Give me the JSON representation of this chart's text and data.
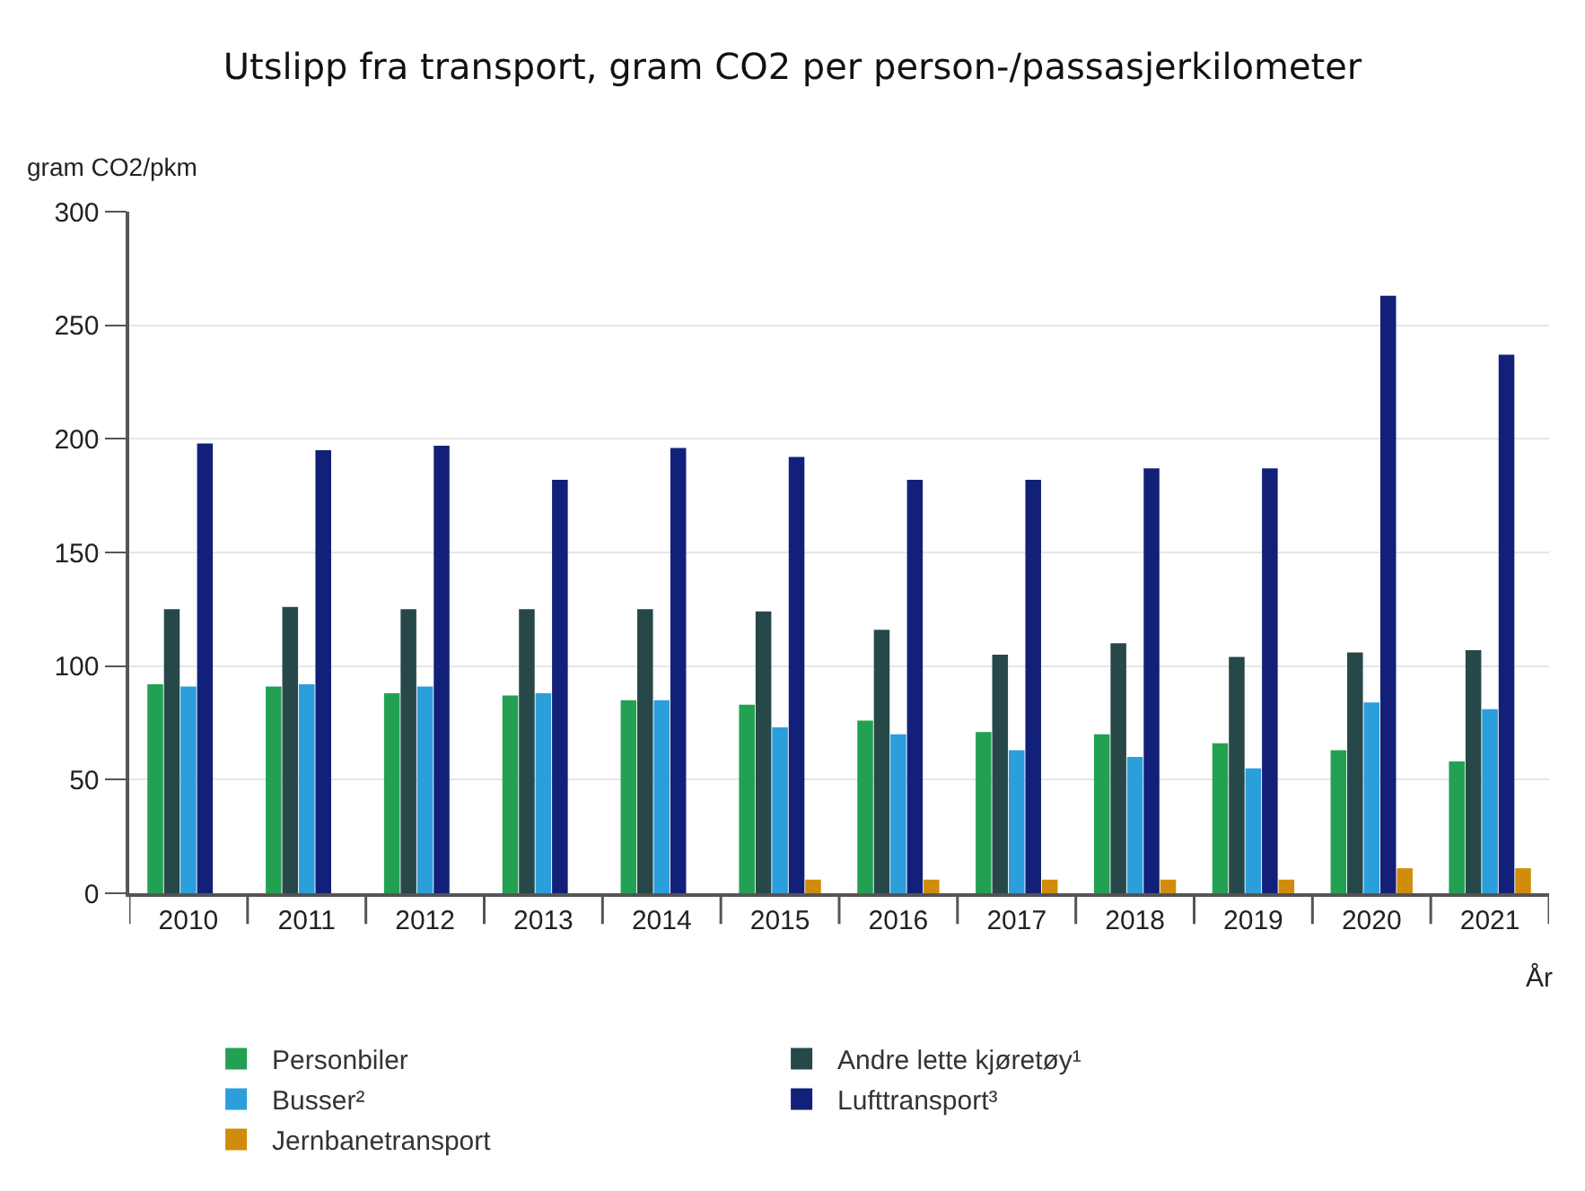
{
  "chart_data": {
    "type": "bar",
    "title": "Utslipp fra transport, gram CO2 per person-/passasjerkilometer",
    "xlabel": "År",
    "ylabel": "gram CO2/pkm",
    "categories": [
      "2010",
      "2011",
      "2012",
      "2013",
      "2014",
      "2015",
      "2016",
      "2017",
      "2018",
      "2019",
      "2020",
      "2021"
    ],
    "series": [
      {
        "name": "Personbiler",
        "color": "#22a153",
        "values": [
          92,
          91,
          88,
          87,
          85,
          83,
          76,
          71,
          70,
          66,
          63,
          58
        ]
      },
      {
        "name": "Andre lette kjøretøy¹",
        "color": "#274848",
        "values": [
          125,
          126,
          125,
          125,
          125,
          124,
          116,
          105,
          110,
          104,
          106,
          107
        ]
      },
      {
        "name": "Busser²",
        "color": "#2a9fdc",
        "values": [
          91,
          92,
          91,
          88,
          85,
          73,
          70,
          63,
          60,
          55,
          84,
          81
        ]
      },
      {
        "name": "Lufttransport³",
        "color": "#13207a",
        "values": [
          198,
          195,
          197,
          182,
          196,
          192,
          182,
          182,
          187,
          187,
          263,
          237
        ]
      },
      {
        "name": "Jernbanetransport",
        "color": "#d08c0a",
        "values": [
          null,
          null,
          null,
          null,
          null,
          6,
          6,
          6,
          6,
          6,
          11,
          11
        ]
      }
    ],
    "ylim": [
      0,
      300
    ],
    "yticks": [
      0,
      50,
      100,
      150,
      200,
      250,
      300
    ],
    "grid": "y",
    "legend": "bottom"
  }
}
